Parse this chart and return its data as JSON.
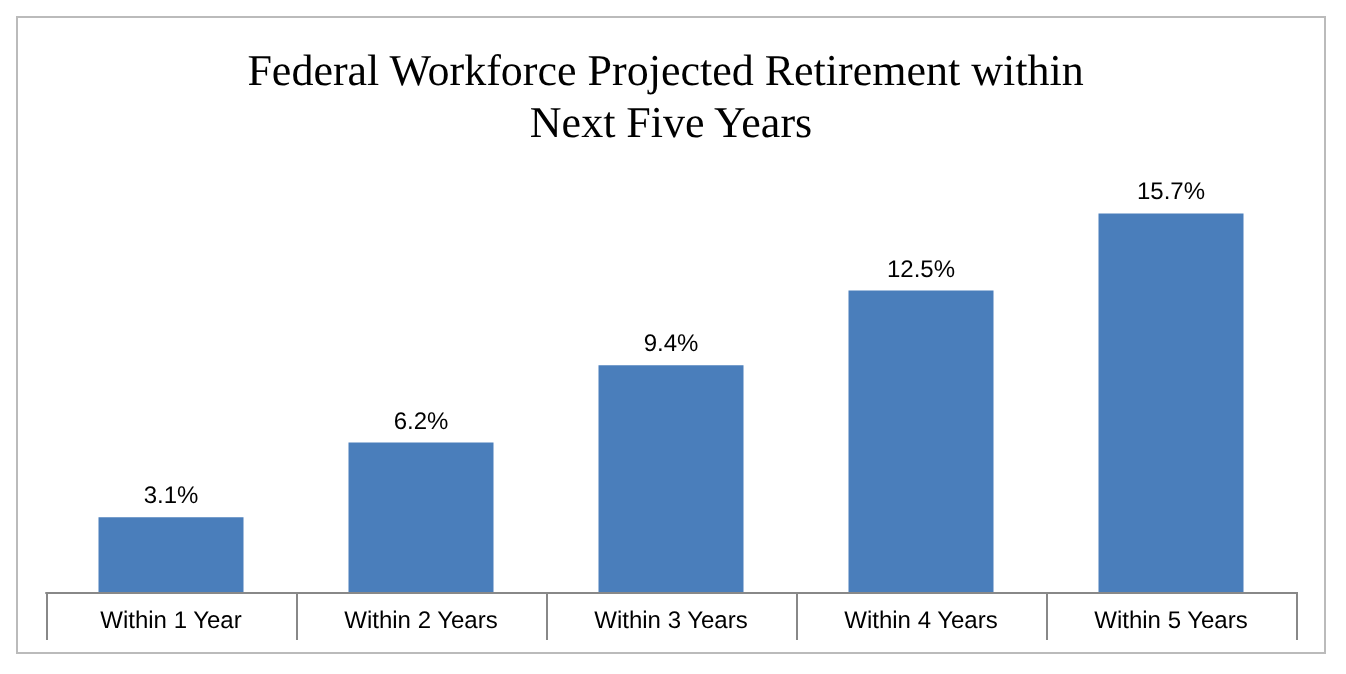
{
  "chart_data": {
    "type": "bar",
    "title": "Federal Workforce Projected Retirement within Next Five Years",
    "categories": [
      "Within 1 Year",
      "Within 2 Years",
      "Within 3 Years",
      "Within 4 Years",
      "Within 5 Years"
    ],
    "values": [
      3.1,
      6.2,
      9.4,
      12.5,
      15.7
    ],
    "value_labels": [
      "3.1%",
      "6.2%",
      "9.4%",
      "12.5%",
      "15.7%"
    ],
    "color": "#4a7ebb",
    "tick_labels": "x",
    "grid": false
  }
}
